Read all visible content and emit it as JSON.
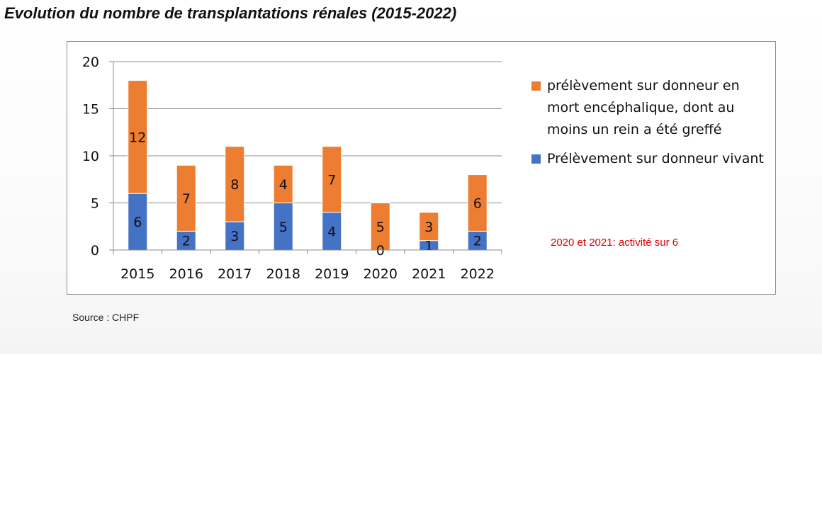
{
  "title": "Evolution du nombre de transplantations rénales (2015-2022)",
  "source": "Source : CHPF",
  "note": "2020 et 2021: activité sur 6",
  "colors": {
    "orange": "#ED7D31",
    "blue": "#4472C4",
    "note_red": "#E00000"
  },
  "chart_data": {
    "type": "bar",
    "stacked": true,
    "categories": [
      "2015",
      "2016",
      "2017",
      "2018",
      "2019",
      "2020",
      "2021",
      "2022"
    ],
    "series": [
      {
        "name": "Prélèvement sur donneur vivant",
        "color": "#4472C4",
        "values": [
          6,
          2,
          3,
          5,
          4,
          0,
          1,
          2
        ]
      },
      {
        "name": "prélèvement sur donneur en mort encéphalique, dont au moins un rein a été greffé",
        "color": "#ED7D31",
        "values": [
          12,
          7,
          8,
          4,
          7,
          5,
          3,
          6
        ]
      }
    ],
    "ylim": [
      0,
      20
    ],
    "yticks": [
      "0",
      "5",
      "10",
      "15",
      "20"
    ],
    "grid": true,
    "legend_position": "right"
  },
  "legend": {
    "items": [
      {
        "label": "prélèvement sur donneur en mort encéphalique, dont au moins un rein a été greffé",
        "color": "#ED7D31"
      },
      {
        "label": "Prélèvement sur donneur vivant",
        "color": "#4472C4"
      }
    ]
  }
}
